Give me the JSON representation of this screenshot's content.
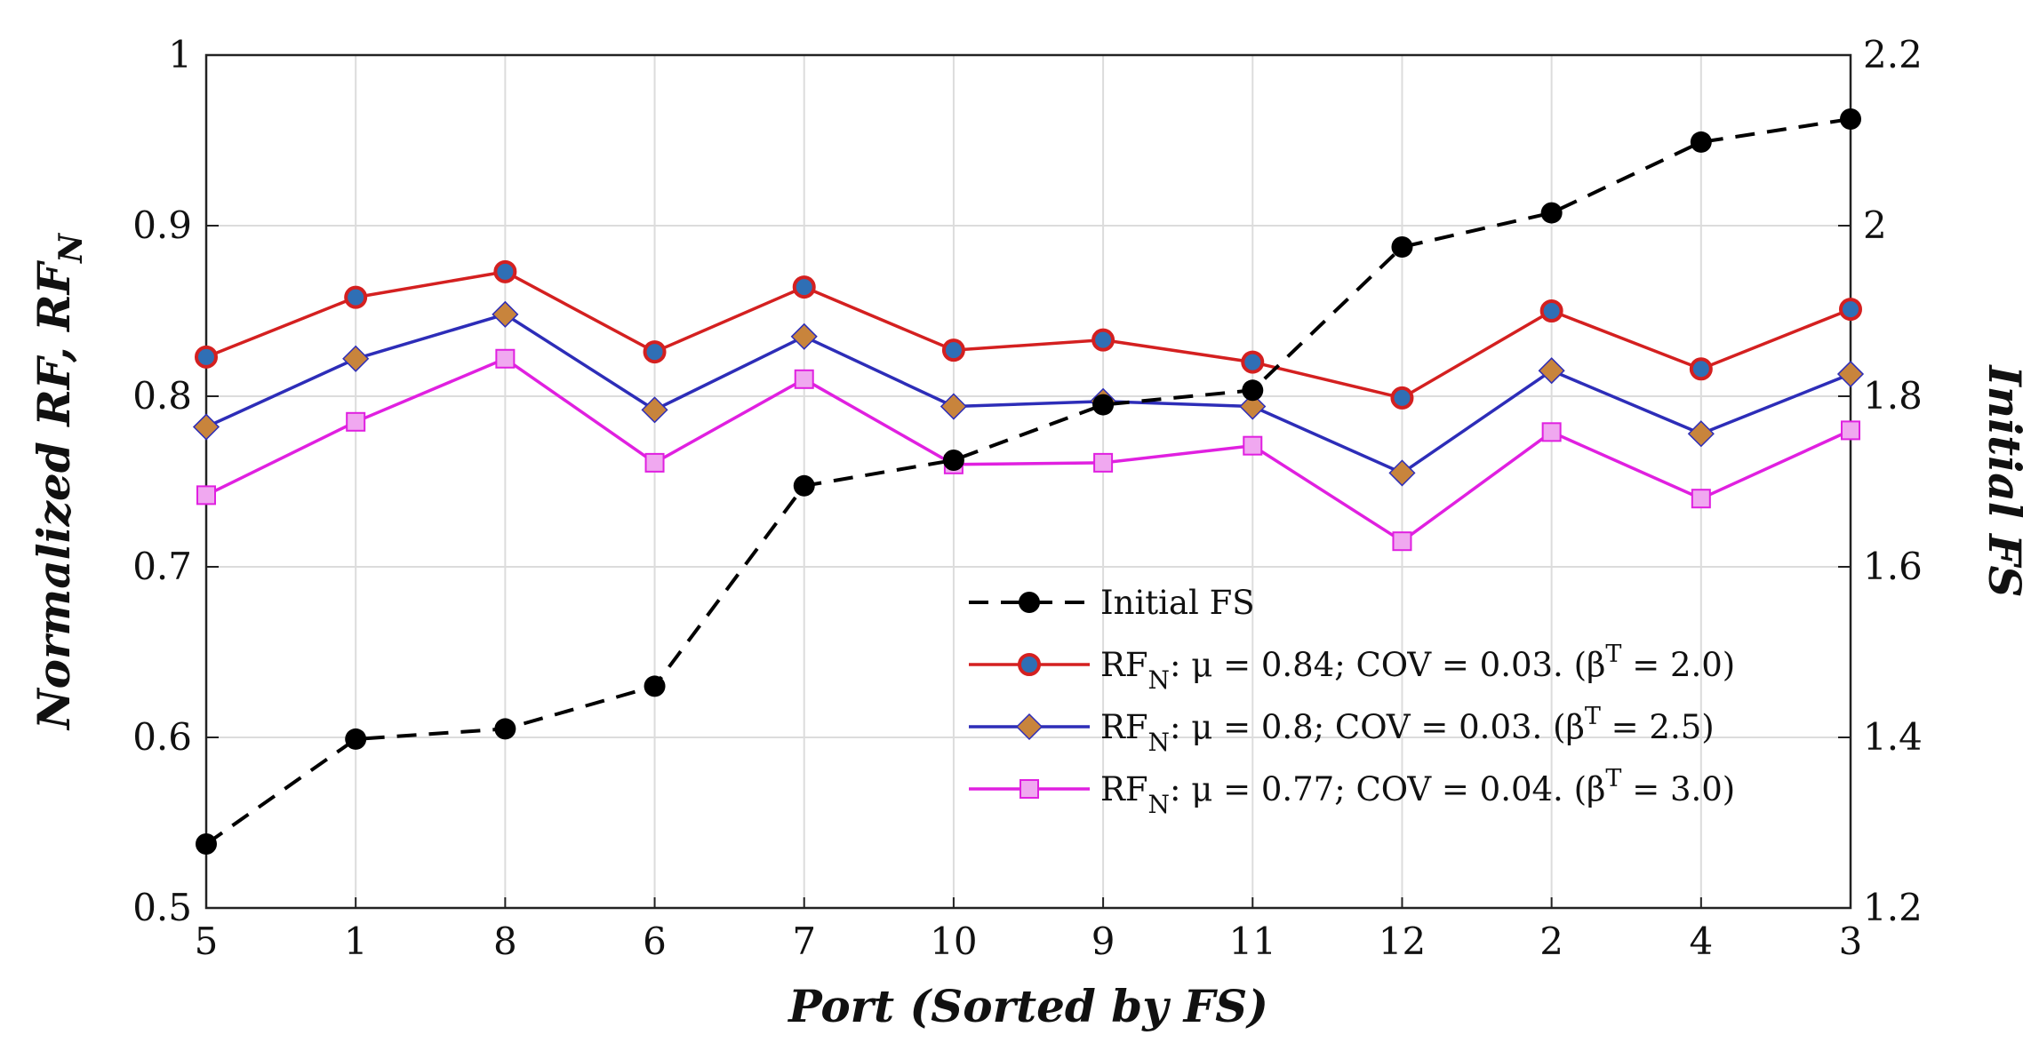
{
  "chart_data": {
    "type": "line",
    "categories": [
      "5",
      "1",
      "8",
      "6",
      "7",
      "10",
      "9",
      "11",
      "12",
      "2",
      "4",
      "3"
    ],
    "xlabel": "Port (Sorted by FS)",
    "ylabel": "Normalized RF, RF",
    "ylabel_sub": "N",
    "y2label": "Initial FS",
    "ylim": [
      0.5,
      1.0
    ],
    "y2lim": [
      1.2,
      2.2
    ],
    "yticks": [
      "0.5",
      "0.6",
      "0.7",
      "0.8",
      "0.9",
      "1"
    ],
    "y2ticks": [
      "1.2",
      "1.4",
      "1.6",
      "1.8",
      "2",
      "2.2"
    ],
    "grid": true,
    "legend_position": "bottom-right",
    "series": [
      {
        "name": "Initial FS",
        "axis": "right",
        "color": "#000000",
        "marker": "circle",
        "dashed": true,
        "values": [
          1.275,
          1.398,
          1.41,
          1.46,
          1.695,
          1.725,
          1.79,
          1.807,
          1.975,
          2.015,
          2.098,
          2.125
        ]
      },
      {
        "name": "RF_N: μ = 0.84; COV = 0.03. (β^T = 2.0)",
        "legend_pre": "RF",
        "legend_sub": "N",
        "legend_mid": ": μ = 0.84; COV = 0.03. (β",
        "legend_sup": "T",
        "legend_post": " = 2.0)",
        "axis": "left",
        "color": "#d42020",
        "marker": "circle",
        "marker_fill": "#2f6fb5",
        "values": [
          0.823,
          0.858,
          0.873,
          0.826,
          0.864,
          0.827,
          0.833,
          0.82,
          0.799,
          0.85,
          0.816,
          0.851
        ]
      },
      {
        "name": "RF_N: μ = 0.8; COV = 0.03. (β^T = 2.5)",
        "legend_pre": "RF",
        "legend_sub": "N",
        "legend_mid": ": μ = 0.8; COV = 0.03. (β",
        "legend_sup": "T",
        "legend_post": " = 2.5)",
        "axis": "left",
        "color": "#2d2db8",
        "marker": "diamond",
        "marker_fill": "#c8843c",
        "values": [
          0.782,
          0.822,
          0.848,
          0.792,
          0.835,
          0.794,
          0.797,
          0.794,
          0.755,
          0.815,
          0.778,
          0.813
        ]
      },
      {
        "name": "RF_N: μ = 0.77; COV = 0.04. (β^T = 3.0)",
        "legend_pre": "RF",
        "legend_sub": "N",
        "legend_mid": ": μ = 0.77; COV = 0.04. (β",
        "legend_sup": "T",
        "legend_post": " = 3.0)",
        "axis": "left",
        "color": "#e020e0",
        "marker": "square",
        "marker_fill": "#f0a8f0",
        "values": [
          0.742,
          0.785,
          0.822,
          0.761,
          0.81,
          0.76,
          0.761,
          0.771,
          0.715,
          0.779,
          0.74,
          0.78
        ]
      }
    ]
  }
}
